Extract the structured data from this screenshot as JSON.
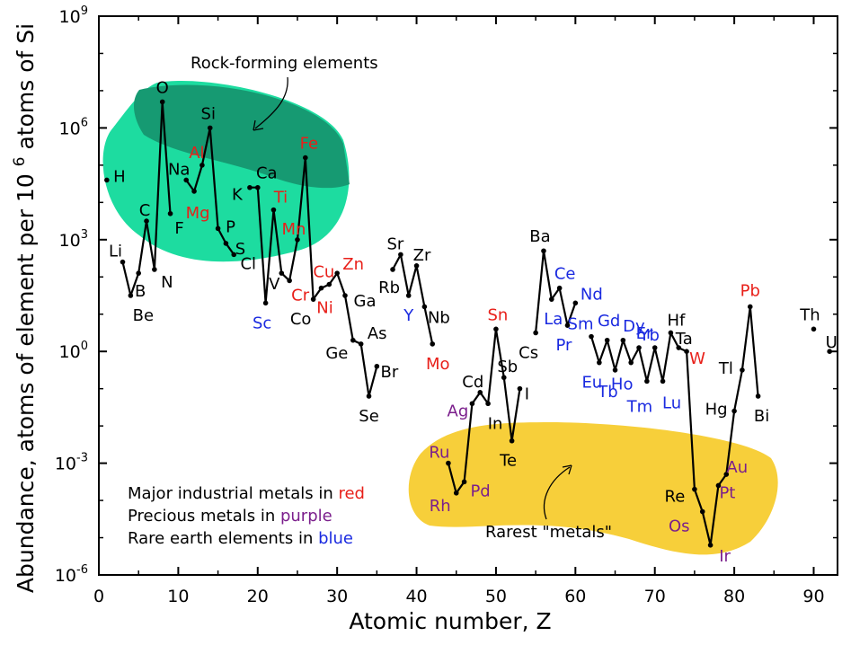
{
  "chart_data": {
    "type": "line",
    "xlabel": "Atomic number, Z",
    "ylabel_prefix": "Abundance, atoms of element per 10",
    "ylabel_exp": "6",
    "ylabel_suffix": " atoms of Si",
    "xlim": [
      0,
      93
    ],
    "ylim_log10": [
      -6,
      9
    ],
    "x_ticks": [
      0,
      10,
      20,
      30,
      40,
      50,
      60,
      70,
      80,
      90
    ],
    "y_ticks": [
      {
        "base": "10",
        "exp": "-6",
        "log": -6
      },
      {
        "base": "10",
        "exp": "-3",
        "log": -3
      },
      {
        "base": "10",
        "exp": "0",
        "log": 0
      },
      {
        "base": "10",
        "exp": "3",
        "log": 3
      },
      {
        "base": "10",
        "exp": "6",
        "log": 6
      },
      {
        "base": "10",
        "exp": "9",
        "log": 9
      }
    ],
    "colors": {
      "line": "#000000",
      "industrial": "#e8201a",
      "precious": "#7b1f8c",
      "rare_earth": "#1a2ae0",
      "default": "#000000",
      "rock_fill": "#1ddca0",
      "rock_overlap": "#169a72",
      "rare_fill": "#f7cf3a"
    },
    "regions": [
      {
        "name": "rock",
        "label": "Rock-forming elements"
      },
      {
        "name": "rare",
        "label": "Rarest \"metals\""
      }
    ],
    "legend_lines": [
      {
        "text": "Major industrial metals in ",
        "cat_text": "red",
        "cat": "industrial"
      },
      {
        "text": "Precious metals in ",
        "cat_text": "purple",
        "cat": "precious"
      },
      {
        "text": "Rare earth elements in ",
        "cat_text": "blue",
        "cat": "rare_earth"
      }
    ],
    "points": [
      {
        "sym": "H",
        "z": 1,
        "log": 4.6,
        "cat": "default"
      },
      {
        "sym": "Li",
        "z": 3,
        "log": 2.4,
        "cat": "default"
      },
      {
        "sym": "Be",
        "z": 4,
        "log": 1.5,
        "cat": "default"
      },
      {
        "sym": "B",
        "z": 5,
        "log": 2.1,
        "cat": "default"
      },
      {
        "sym": "C",
        "z": 6,
        "log": 3.5,
        "cat": "default"
      },
      {
        "sym": "N",
        "z": 7,
        "log": 2.2,
        "cat": "default"
      },
      {
        "sym": "O",
        "z": 8,
        "log": 6.7,
        "cat": "default"
      },
      {
        "sym": "F",
        "z": 9,
        "log": 3.7,
        "cat": "default"
      },
      {
        "sym": "Na",
        "z": 11,
        "log": 4.6,
        "cat": "default"
      },
      {
        "sym": "Mg",
        "z": 12,
        "log": 4.3,
        "cat": "industrial"
      },
      {
        "sym": "Al",
        "z": 13,
        "log": 5.0,
        "cat": "industrial"
      },
      {
        "sym": "Si",
        "z": 14,
        "log": 6.0,
        "cat": "default"
      },
      {
        "sym": "P",
        "z": 15,
        "log": 3.3,
        "cat": "default"
      },
      {
        "sym": "S",
        "z": 16,
        "log": 2.9,
        "cat": "default"
      },
      {
        "sym": "Cl",
        "z": 17,
        "log": 2.6,
        "cat": "default"
      },
      {
        "sym": "K",
        "z": 19,
        "log": 4.4,
        "cat": "default"
      },
      {
        "sym": "Ca",
        "z": 20,
        "log": 4.4,
        "cat": "default"
      },
      {
        "sym": "Sc",
        "z": 21,
        "log": 1.3,
        "cat": "rare_earth"
      },
      {
        "sym": "Ti",
        "z": 22,
        "log": 3.8,
        "cat": "industrial"
      },
      {
        "sym": "V",
        "z": 23,
        "log": 2.1,
        "cat": "default"
      },
      {
        "sym": "Cr",
        "z": 24,
        "log": 1.9,
        "cat": "industrial"
      },
      {
        "sym": "Mn",
        "z": 25,
        "log": 3.0,
        "cat": "industrial"
      },
      {
        "sym": "Fe",
        "z": 26,
        "log": 5.2,
        "cat": "industrial"
      },
      {
        "sym": "Co",
        "z": 27,
        "log": 1.4,
        "cat": "default"
      },
      {
        "sym": "Ni",
        "z": 28,
        "log": 1.7,
        "cat": "industrial"
      },
      {
        "sym": "Cu",
        "z": 29,
        "log": 1.8,
        "cat": "industrial"
      },
      {
        "sym": "Zn",
        "z": 30,
        "log": 2.1,
        "cat": "industrial"
      },
      {
        "sym": "Ga",
        "z": 31,
        "log": 1.5,
        "cat": "default"
      },
      {
        "sym": "Ge",
        "z": 32,
        "log": 0.3,
        "cat": "default"
      },
      {
        "sym": "As",
        "z": 33,
        "log": 0.2,
        "cat": "default"
      },
      {
        "sym": "Se",
        "z": 34,
        "log": -1.2,
        "cat": "default"
      },
      {
        "sym": "Br",
        "z": 35,
        "log": -0.4,
        "cat": "default"
      },
      {
        "sym": "Rb",
        "z": 37,
        "log": 2.2,
        "cat": "default"
      },
      {
        "sym": "Sr",
        "z": 38,
        "log": 2.6,
        "cat": "default"
      },
      {
        "sym": "Y",
        "z": 39,
        "log": 1.5,
        "cat": "rare_earth"
      },
      {
        "sym": "Zr",
        "z": 40,
        "log": 2.3,
        "cat": "default"
      },
      {
        "sym": "Nb",
        "z": 41,
        "log": 1.2,
        "cat": "default"
      },
      {
        "sym": "Mo",
        "z": 42,
        "log": 0.2,
        "cat": "industrial"
      },
      {
        "sym": "Ru",
        "z": 44,
        "log": -3.0,
        "cat": "precious"
      },
      {
        "sym": "Rh",
        "z": 45,
        "log": -3.8,
        "cat": "precious"
      },
      {
        "sym": "Pd",
        "z": 46,
        "log": -3.5,
        "cat": "precious"
      },
      {
        "sym": "Ag",
        "z": 47,
        "log": -1.4,
        "cat": "precious"
      },
      {
        "sym": "Cd",
        "z": 48,
        "log": -1.1,
        "cat": "default"
      },
      {
        "sym": "In",
        "z": 49,
        "log": -1.4,
        "cat": "default"
      },
      {
        "sym": "Sn",
        "z": 50,
        "log": 0.6,
        "cat": "industrial"
      },
      {
        "sym": "Sb",
        "z": 51,
        "log": -0.7,
        "cat": "default"
      },
      {
        "sym": "Te",
        "z": 52,
        "log": -2.4,
        "cat": "default"
      },
      {
        "sym": "I",
        "z": 53,
        "log": -1.0,
        "cat": "default"
      },
      {
        "sym": "Cs",
        "z": 55,
        "log": 0.5,
        "cat": "default"
      },
      {
        "sym": "Ba",
        "z": 56,
        "log": 2.7,
        "cat": "default"
      },
      {
        "sym": "La",
        "z": 57,
        "log": 1.4,
        "cat": "rare_earth"
      },
      {
        "sym": "Ce",
        "z": 58,
        "log": 1.7,
        "cat": "rare_earth"
      },
      {
        "sym": "Pr",
        "z": 59,
        "log": 0.7,
        "cat": "rare_earth"
      },
      {
        "sym": "Nd",
        "z": 60,
        "log": 1.3,
        "cat": "rare_earth"
      },
      {
        "sym": "Sm",
        "z": 62,
        "log": 0.4,
        "cat": "rare_earth"
      },
      {
        "sym": "Eu",
        "z": 63,
        "log": -0.3,
        "cat": "rare_earth"
      },
      {
        "sym": "Gd",
        "z": 64,
        "log": 0.3,
        "cat": "rare_earth"
      },
      {
        "sym": "Tb",
        "z": 65,
        "log": -0.5,
        "cat": "rare_earth"
      },
      {
        "sym": "Dy",
        "z": 66,
        "log": 0.3,
        "cat": "rare_earth"
      },
      {
        "sym": "Ho",
        "z": 67,
        "log": -0.3,
        "cat": "rare_earth"
      },
      {
        "sym": "Er",
        "z": 68,
        "log": 0.1,
        "cat": "rare_earth"
      },
      {
        "sym": "Tm",
        "z": 69,
        "log": -0.8,
        "cat": "rare_earth"
      },
      {
        "sym": "Yb",
        "z": 70,
        "log": 0.1,
        "cat": "rare_earth"
      },
      {
        "sym": "Lu",
        "z": 71,
        "log": -0.8,
        "cat": "rare_earth"
      },
      {
        "sym": "Hf",
        "z": 72,
        "log": 0.5,
        "cat": "default"
      },
      {
        "sym": "Ta",
        "z": 73,
        "log": 0.1,
        "cat": "default"
      },
      {
        "sym": "W",
        "z": 74,
        "log": 0.0,
        "cat": "industrial"
      },
      {
        "sym": "Re",
        "z": 75,
        "log": -3.7,
        "cat": "default"
      },
      {
        "sym": "Os",
        "z": 76,
        "log": -4.3,
        "cat": "precious"
      },
      {
        "sym": "Ir",
        "z": 77,
        "log": -5.2,
        "cat": "precious"
      },
      {
        "sym": "Pt",
        "z": 78,
        "log": -3.6,
        "cat": "precious"
      },
      {
        "sym": "Au",
        "z": 79,
        "log": -3.3,
        "cat": "precious"
      },
      {
        "sym": "Hg",
        "z": 80,
        "log": -1.6,
        "cat": "default"
      },
      {
        "sym": "Tl",
        "z": 81,
        "log": -0.5,
        "cat": "default"
      },
      {
        "sym": "Pb",
        "z": 82,
        "log": 1.2,
        "cat": "industrial"
      },
      {
        "sym": "Bi",
        "z": 83,
        "log": -1.2,
        "cat": "default"
      },
      {
        "sym": "Th",
        "z": 90,
        "log": 0.6,
        "cat": "default"
      },
      {
        "sym": "U",
        "z": 92,
        "log": 0.0,
        "cat": "default"
      }
    ],
    "segments": [
      [
        "H"
      ],
      [
        "Li",
        "Be",
        "B",
        "C",
        "N",
        "O",
        "F"
      ],
      [
        "Na",
        "Mg",
        "Al",
        "Si",
        "P",
        "S",
        "Cl"
      ],
      [
        "K",
        "Ca",
        "Sc",
        "Ti",
        "V",
        "Cr",
        "Mn",
        "Fe",
        "Co",
        "Ni",
        "Cu",
        "Zn",
        "Ga",
        "Ge",
        "As",
        "Se",
        "Br"
      ],
      [
        "Rb",
        "Sr",
        "Y",
        "Zr",
        "Nb",
        "Mo"
      ],
      [
        "Ru",
        "Rh",
        "Pd",
        "Ag",
        "Cd",
        "In",
        "Sn",
        "Sb",
        "Te",
        "I"
      ],
      [
        "Cs",
        "Ba",
        "La",
        "Ce",
        "Pr",
        "Nd"
      ],
      [
        "Sm",
        "Eu",
        "Gd",
        "Tb",
        "Dy",
        "Ho",
        "Er",
        "Tm",
        "Yb",
        "Lu",
        "Hf",
        "Ta",
        "W",
        "Re",
        "Os",
        "Ir",
        "Pt",
        "Au",
        "Hg",
        "Tl",
        "Pb",
        "Bi"
      ],
      [
        "Th"
      ],
      [
        "U"
      ]
    ]
  }
}
